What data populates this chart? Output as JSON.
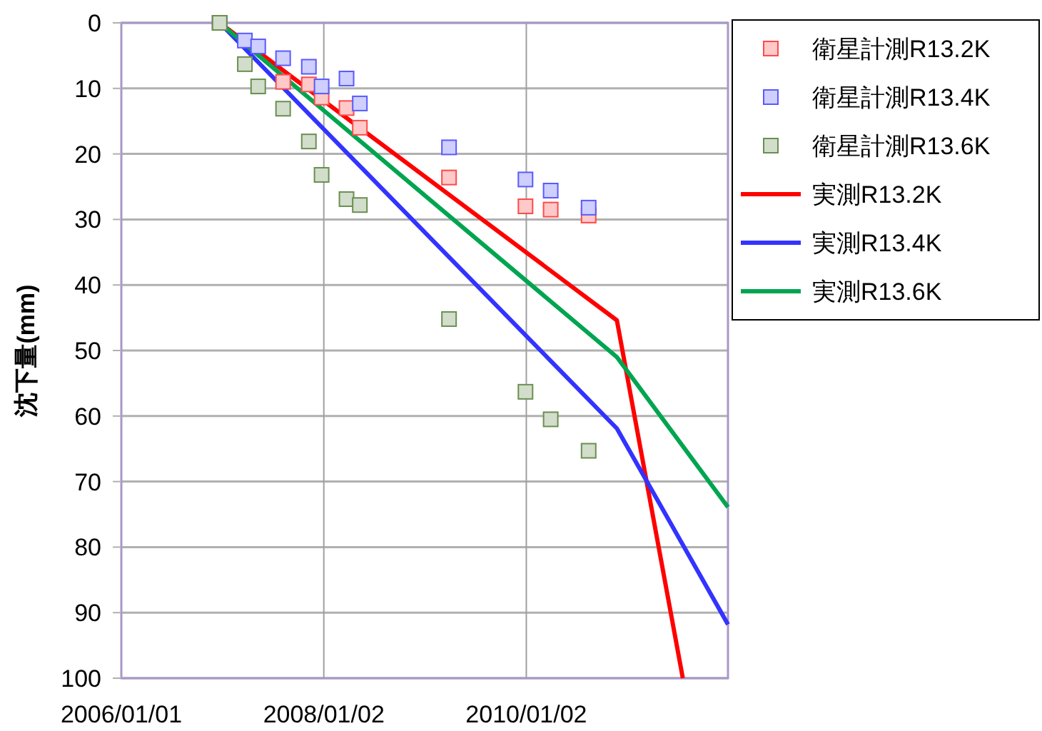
{
  "chart_data": {
    "type": "scatter",
    "ylabel": "沈下量(mm)",
    "xlim": [
      "2006-01-01",
      "2011-12-31"
    ],
    "xticks": [
      {
        "value": "2006-01-01",
        "label": "2006/01/01"
      },
      {
        "value": "2008-01-02",
        "label": "2008/01/02"
      },
      {
        "value": "2010-01-02",
        "label": "2010/01/02"
      }
    ],
    "ylim": [
      100,
      0
    ],
    "yticks": [
      0,
      10,
      20,
      30,
      40,
      50,
      60,
      70,
      80,
      90,
      100
    ],
    "grid": true,
    "legend": "top right",
    "series": [
      {
        "name": "衛星計測R13.2K",
        "marker": "square",
        "color": "#ff4a4a",
        "x": [
          "2006-12-22",
          "2007-08-08",
          "2007-11-09",
          "2007-12-25",
          "2008-03-24",
          "2008-05-11",
          "2009-03-29",
          "2009-12-30",
          "2010-03-31",
          "2010-08-15"
        ],
        "values": [
          0,
          9.0,
          9.4,
          11.4,
          13.0,
          16.0,
          23.6,
          28.0,
          28.5,
          29.4
        ]
      },
      {
        "name": "衛星計測R13.4K",
        "marker": "square",
        "color": "#5a5aff",
        "x": [
          "2006-12-22",
          "2007-03-23",
          "2007-05-10",
          "2007-08-08",
          "2007-11-09",
          "2007-12-25",
          "2008-03-24",
          "2008-05-11",
          "2009-03-29",
          "2009-12-30",
          "2010-03-31",
          "2010-08-15"
        ],
        "values": [
          0,
          2.7,
          3.6,
          5.4,
          6.7,
          9.7,
          8.5,
          12.3,
          19.0,
          23.9,
          25.6,
          28.2
        ]
      },
      {
        "name": "衛星計測R13.6K",
        "marker": "square",
        "color": "#6a8f50",
        "x": [
          "2006-12-22",
          "2007-03-23",
          "2007-05-10",
          "2007-08-08",
          "2007-11-09",
          "2007-12-25",
          "2008-03-24",
          "2008-05-11",
          "2009-03-29",
          "2009-12-30",
          "2010-03-31",
          "2010-08-15"
        ],
        "values": [
          0,
          6.3,
          9.7,
          13.1,
          18.1,
          23.2,
          26.9,
          27.8,
          45.2,
          56.3,
          60.5,
          65.3
        ]
      },
      {
        "name": "実測R13.2K",
        "type": "line",
        "marker": "none",
        "color": "#ff0000",
        "x": [
          "2006-12-22",
          "2010-11-25",
          "2011-07-21"
        ],
        "values": [
          0,
          45.4,
          100
        ]
      },
      {
        "name": "実測R13.4K",
        "type": "line",
        "marker": "none",
        "color": "#3333ff",
        "x": [
          "2006-12-22",
          "2010-11-25",
          "2011-12-31"
        ],
        "values": [
          0,
          61.9,
          91.8
        ]
      },
      {
        "name": "実測R13.6K",
        "type": "line",
        "marker": "none",
        "color": "#00a550",
        "x": [
          "2006-12-22",
          "2010-11-25",
          "2011-12-31"
        ],
        "values": [
          0,
          51.0,
          73.9
        ]
      }
    ]
  }
}
